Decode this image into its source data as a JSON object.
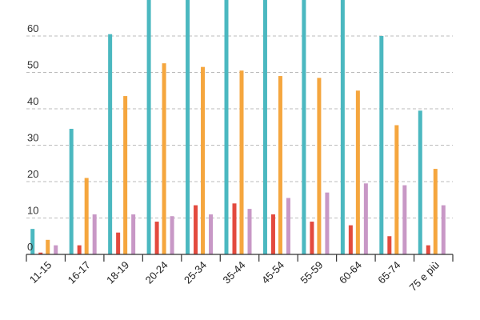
{
  "chart_data": {
    "type": "bar",
    "title": "",
    "xlabel": "",
    "ylabel": "",
    "ylim": [
      0,
      70
    ],
    "yticks": [
      0,
      10,
      20,
      30,
      40,
      50,
      60
    ],
    "grid": true,
    "legend": "bottom",
    "categories": [
      "11-15",
      "16-17",
      "18-19",
      "20-24",
      "25-34",
      "35-44",
      "45-54",
      "55-59",
      "60-64",
      "65-74",
      "75 e più"
    ],
    "series": [
      {
        "color": "#4bb8c0",
        "values": [
          7,
          34.5,
          60.5,
          75,
          75,
          75,
          75,
          75,
          75,
          60,
          39.5
        ]
      },
      {
        "color": "#e34a3e",
        "values": [
          0.5,
          2.5,
          6,
          9,
          13.5,
          14,
          11,
          9,
          8,
          5,
          2.5
        ]
      },
      {
        "color": "#f5a63e",
        "values": [
          4,
          21,
          43.5,
          52.5,
          51.5,
          50.5,
          49,
          48.5,
          45,
          35.5,
          23.5
        ]
      },
      {
        "color": "#c898c6",
        "values": [
          2.5,
          11,
          11,
          10.5,
          11,
          12.5,
          15.5,
          17,
          19.5,
          19,
          13.5
        ]
      }
    ]
  }
}
